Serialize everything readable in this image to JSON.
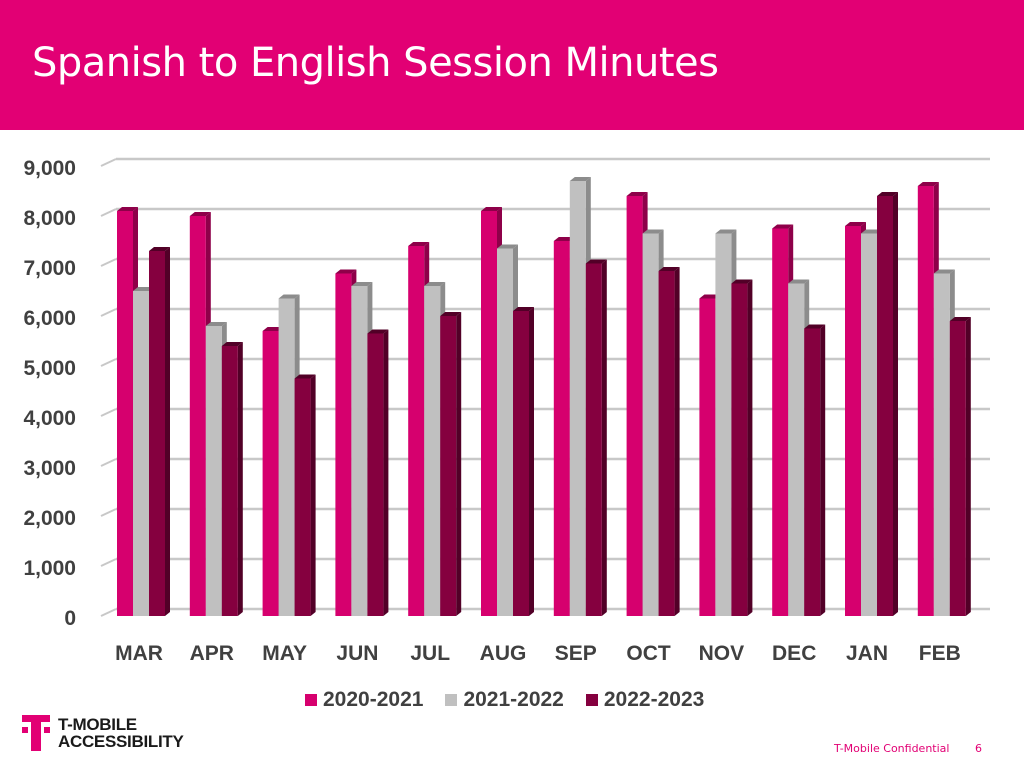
{
  "slide": {
    "title": "Spanish to English Session Minutes",
    "header_color": "#E20074"
  },
  "footer": {
    "logo_line1": "T-MOBILE",
    "logo_line2": "ACCESSIBILITY",
    "confidential": "T-Mobile Confidential",
    "page_number": "6"
  },
  "legend": [
    {
      "label": "2020-2021",
      "color": "#D6006E"
    },
    {
      "label": "2021-2022",
      "color": "#C0C0C0"
    },
    {
      "label": "2022-2023",
      "color": "#85003F"
    }
  ],
  "chart_data": {
    "type": "bar",
    "style": "3d-clustered-column",
    "title": "Spanish to English Session Minutes",
    "xlabel": "",
    "ylabel": "",
    "ylim": [
      0,
      9000
    ],
    "yticks": [
      "0",
      "1,000",
      "2,000",
      "3,000",
      "4,000",
      "5,000",
      "6,000",
      "7,000",
      "8,000",
      "9,000"
    ],
    "grid": true,
    "legend_position": "bottom",
    "categories": [
      "MAR",
      "APR",
      "MAY",
      "JUN",
      "JUL",
      "AUG",
      "SEP",
      "OCT",
      "NOV",
      "DEC",
      "JAN",
      "FEB"
    ],
    "series": [
      {
        "name": "2020-2021",
        "color": "#D6006E",
        "side_color": "#8E0049",
        "values": [
          8100,
          8000,
          5700,
          6850,
          7400,
          8100,
          7500,
          8400,
          6350,
          7750,
          7800,
          8600
        ]
      },
      {
        "name": "2021-2022",
        "color": "#C0C0C0",
        "side_color": "#8C8C8C",
        "values": [
          6500,
          5800,
          6350,
          6600,
          6600,
          7350,
          8700,
          7650,
          7650,
          6650,
          7650,
          6850
        ]
      },
      {
        "name": "2022-2023",
        "color": "#85003F",
        "side_color": "#520027",
        "values": [
          7300,
          5400,
          4750,
          5650,
          6000,
          6100,
          7050,
          6900,
          6650,
          5750,
          8400,
          5900
        ]
      }
    ]
  }
}
